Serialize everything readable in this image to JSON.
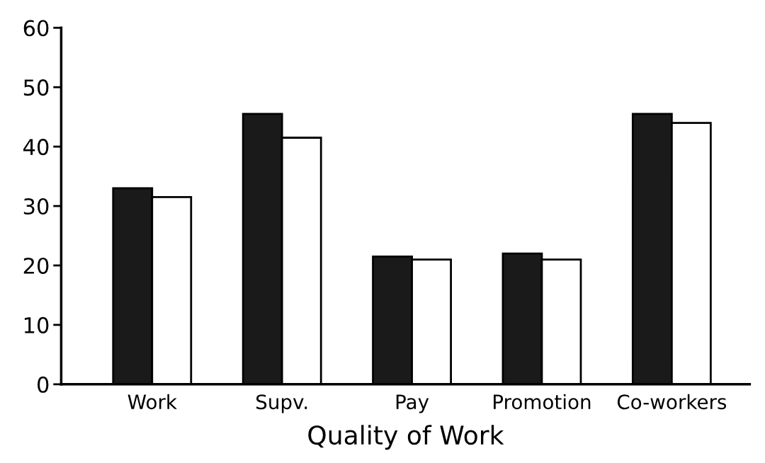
{
  "chart_data": {
    "type": "bar",
    "xlabel": "Quality of Work",
    "categories": [
      "Work",
      "Supv.",
      "Pay",
      "Promotion",
      "Co-workers"
    ],
    "series": [
      {
        "color": "#1a1a1a",
        "values": [
          33,
          45.5,
          21.5,
          22,
          45.5
        ]
      },
      {
        "color": "#ffffff",
        "values": [
          31.5,
          41.5,
          21,
          21,
          44
        ]
      }
    ],
    "ylim": [
      0,
      60
    ],
    "yticks": [
      0,
      10,
      20,
      30,
      40,
      50,
      60
    ],
    "grid": false,
    "legend": false
  }
}
